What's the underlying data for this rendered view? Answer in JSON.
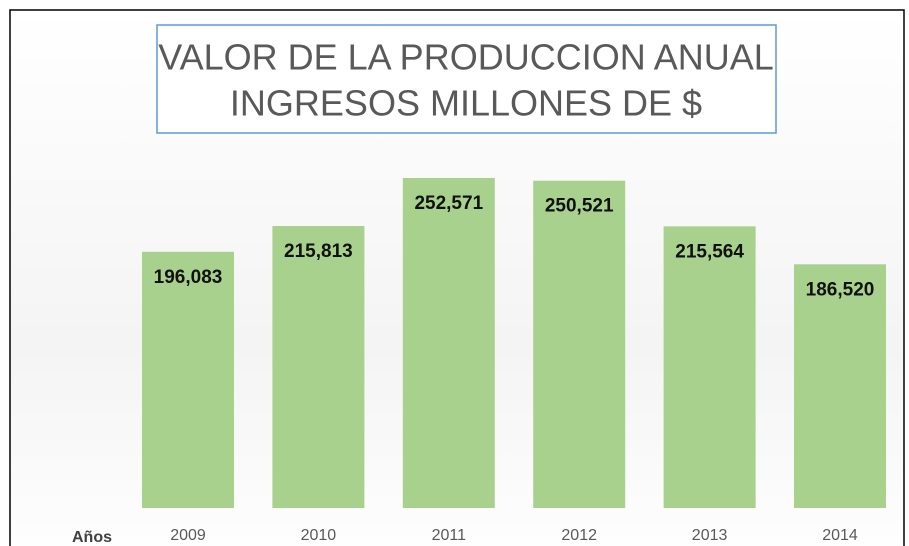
{
  "chart_data": {
    "type": "bar",
    "title": [
      "VALOR DE LA PRODUCCION ANUAL",
      "INGRESOS MILLONES DE $"
    ],
    "x_label": "Años",
    "categories": [
      "2009",
      "2010",
      "2011",
      "2012",
      "2013",
      "2014"
    ],
    "values": [
      196083,
      215813,
      252571,
      250521,
      215564,
      186520
    ],
    "value_labels": [
      "196,083",
      "215,813",
      "252,571",
      "250,521",
      "215,564",
      "186,520"
    ],
    "color": "#a9d18e"
  }
}
